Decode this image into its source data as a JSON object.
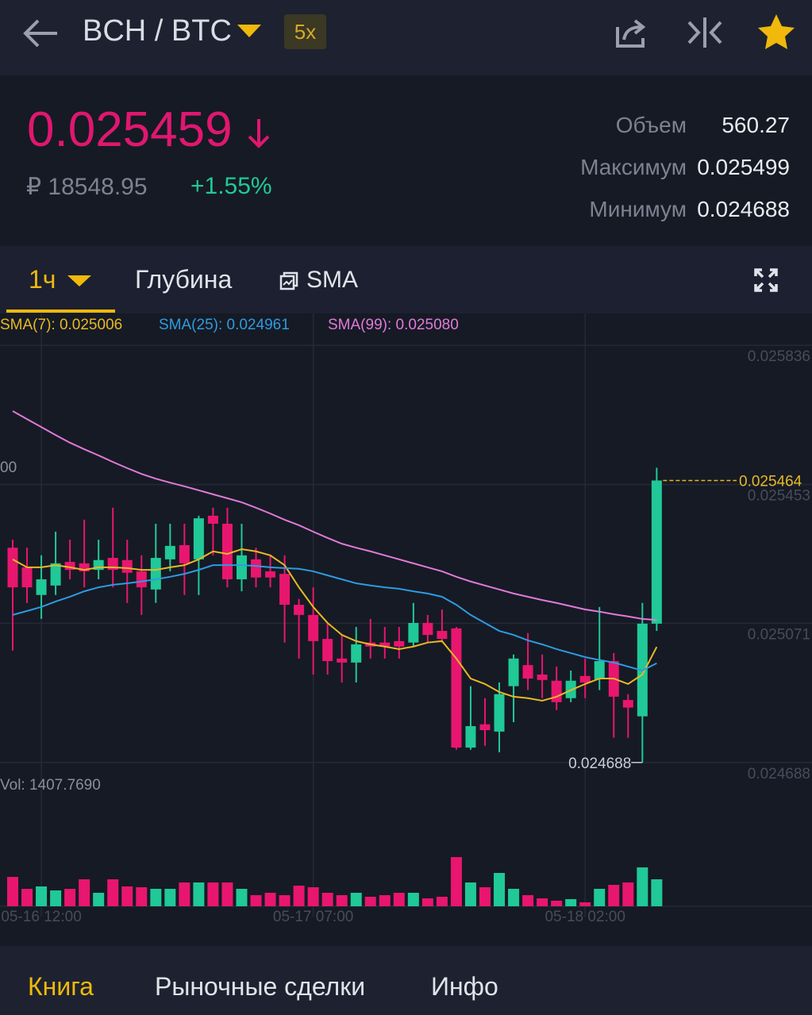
{
  "header": {
    "pair": "BCH / BTC",
    "leverage": "5x"
  },
  "ticker": {
    "price": "0.025459",
    "fiat": "₽ 18548.95",
    "change": "+1.55%",
    "stats": [
      {
        "label": "Объем",
        "value": "560.27"
      },
      {
        "label": "Максимум",
        "value": "0.025499"
      },
      {
        "label": "Минимум",
        "value": "0.024688"
      }
    ]
  },
  "tabs": {
    "interval": "1ч",
    "depth": "Глубина",
    "indicator": "SMA"
  },
  "bottom_nav": [
    "Книга",
    "Рыночные сделки",
    "Инфо"
  ],
  "chart_data": {
    "type": "candlestick",
    "categories": [
      null,
      null,
      "05-16 12:00",
      null,
      null,
      null,
      null,
      null,
      null,
      null,
      null,
      null,
      null,
      null,
      null,
      null,
      null,
      null,
      null,
      null,
      null,
      "05-17 07:00",
      null,
      null,
      null,
      null,
      null,
      null,
      null,
      null,
      null,
      null,
      null,
      null,
      null,
      null,
      null,
      null,
      null,
      null,
      "05-18 02:00",
      null,
      null,
      null,
      null,
      null
    ],
    "open": [
      0.025279,
      0.025225,
      0.025149,
      0.025175,
      0.02524,
      0.025236,
      0.025218,
      0.025251,
      0.025245,
      0.025214,
      0.025164,
      0.025247,
      0.025286,
      0.025247,
      0.025367,
      0.025345,
      0.025192,
      0.025247,
      0.025214,
      0.025207,
      0.025122,
      0.025094,
      0.025028,
      0.024974,
      0.024963,
      0.025018,
      0.025018,
      0.025022,
      0.025018,
      0.025072,
      0.02505,
      0.025057,
      0.024729,
      0.024793,
      0.024773,
      0.024898,
      0.024956,
      0.02493,
      0.024913,
      0.024865,
      0.024926,
      0.024917,
      0.024967,
      0.02486,
      0.024815,
      0.02507
    ],
    "high": [
      0.025301,
      0.025279,
      0.025258,
      0.025323,
      0.025301,
      0.025356,
      0.025301,
      0.025389,
      0.025301,
      0.025258,
      0.025345,
      0.025345,
      0.025345,
      0.025367,
      0.025389,
      0.025389,
      0.025345,
      0.025279,
      0.025258,
      0.025258,
      0.025138,
      0.02517,
      0.025072,
      0.025039,
      0.025061,
      0.025083,
      0.025061,
      0.025061,
      0.025127,
      0.025094,
      0.025109,
      0.025061,
      0.024898,
      0.024865,
      0.024908,
      0.024985,
      0.025044,
      0.024985,
      0.024952,
      0.024941,
      0.024974,
      0.025116,
      0.024989,
      0.024876,
      0.025127,
      0.025499
    ],
    "low": [
      0.024996,
      0.025127,
      0.025083,
      0.025149,
      0.025192,
      0.02517,
      0.025192,
      0.02517,
      0.025127,
      0.025094,
      0.025127,
      0.025214,
      0.025149,
      0.025149,
      0.025258,
      0.02517,
      0.025159,
      0.02517,
      0.02517,
      0.025018,
      0.024974,
      0.02493,
      0.02493,
      0.024908,
      0.024908,
      0.024974,
      0.024974,
      0.024974,
      0.025007,
      0.025018,
      0.025018,
      0.024723,
      0.024723,
      0.024734,
      0.024716,
      0.024799,
      0.024887,
      0.024865,
      0.024832,
      0.024854,
      0.024865,
      0.024887,
      0.024756,
      0.024756,
      0.024688,
      0.02505
    ],
    "close": [
      0.02517,
      0.02517,
      0.025192,
      0.025236,
      0.025218,
      0.025214,
      0.025245,
      0.025218,
      0.02521,
      0.02517,
      0.025251,
      0.025284,
      0.025236,
      0.02536,
      0.025345,
      0.025192,
      0.025258,
      0.025197,
      0.025197,
      0.025122,
      0.025094,
      0.025022,
      0.024967,
      0.024963,
      0.025013,
      0.025007,
      0.025007,
      0.025007,
      0.025072,
      0.025039,
      0.025028,
      0.024729,
      0.024788,
      0.024777,
      0.024876,
      0.024974,
      0.024919,
      0.024915,
      0.024854,
      0.024913,
      0.024908,
      0.024967,
      0.024869,
      0.024839,
      0.02507,
      0.025464
    ],
    "up_color": "#20c997",
    "down_color": "#e8166f",
    "series": [
      {
        "name": "SMA(7): 0.025006",
        "color": "#e8b923",
        "values": [
          0.025247,
          0.025225,
          0.025225,
          0.025231,
          0.025225,
          0.025218,
          0.025225,
          0.025225,
          0.025223,
          0.025218,
          0.025218,
          0.025225,
          0.025231,
          0.025247,
          0.025269,
          0.025262,
          0.025275,
          0.025269,
          0.025258,
          0.025231,
          0.02517,
          0.025116,
          0.025072,
          0.025039,
          0.025022,
          0.025013,
          0.025007,
          0.025,
          0.025007,
          0.025018,
          0.025022,
          0.024974,
          0.024919,
          0.024904,
          0.024882,
          0.024869,
          0.024865,
          0.024858,
          0.024869,
          0.024887,
          0.024904,
          0.024919,
          0.024919,
          0.024904,
          0.02493,
          0.025006
        ]
      },
      {
        "name": "SMA(25): 0.024961",
        "color": "#2d9be0",
        "values": [
          0.025094,
          0.025105,
          0.025116,
          0.025131,
          0.025144,
          0.025159,
          0.02517,
          0.025177,
          0.025181,
          0.025186,
          0.025192,
          0.025199,
          0.025207,
          0.025218,
          0.025231,
          0.025231,
          0.025231,
          0.025229,
          0.025225,
          0.025223,
          0.025221,
          0.025214,
          0.025203,
          0.025192,
          0.025181,
          0.025175,
          0.02517,
          0.025166,
          0.025159,
          0.025153,
          0.025144,
          0.025122,
          0.025094,
          0.025072,
          0.02505,
          0.025039,
          0.025024,
          0.025013,
          0.025,
          0.024989,
          0.024978,
          0.02497,
          0.024963,
          0.024952,
          0.024941,
          0.024961
        ]
      },
      {
        "name": "SMA(99): 0.025080",
        "color": "#e07ad8",
        "values": [
          0.025655,
          0.025633,
          0.025611,
          0.025589,
          0.025568,
          0.02555,
          0.025533,
          0.025515,
          0.025498,
          0.025482,
          0.025469,
          0.025458,
          0.025448,
          0.025437,
          0.025426,
          0.025415,
          0.025404,
          0.025389,
          0.025373,
          0.025356,
          0.025341,
          0.025323,
          0.025306,
          0.02529,
          0.025279,
          0.025269,
          0.025258,
          0.025247,
          0.025236,
          0.025225,
          0.025214,
          0.025199,
          0.025186,
          0.025175,
          0.025164,
          0.025153,
          0.025144,
          0.025135,
          0.025127,
          0.025118,
          0.025109,
          0.025103,
          0.025096,
          0.02509,
          0.025083,
          0.02508
        ]
      }
    ],
    "ylim": [
      0.024657,
      0.025869
    ],
    "yticks": [
      0.025836,
      0.025453,
      0.025071,
      0.024688
    ],
    "grid": true,
    "last_price": 0.025464,
    "low_price": 0.024688,
    "left_label": "00",
    "volume": {
      "label": "Vol: 1407.7690",
      "ylim": [
        0,
        3000
      ],
      "values": [
        1532,
        911,
        1035,
        828,
        911,
        1408,
        704,
        1408,
        1035,
        994,
        911,
        911,
        1242,
        1242,
        1242,
        1242,
        911,
        580,
        704,
        580,
        1076,
        994,
        704,
        580,
        704,
        497,
        580,
        704,
        704,
        414,
        497,
        2567,
        1242,
        994,
        1739,
        911,
        580,
        414,
        290,
        373,
        207,
        911,
        1118,
        1242,
        2029,
        1407.769
      ]
    }
  }
}
